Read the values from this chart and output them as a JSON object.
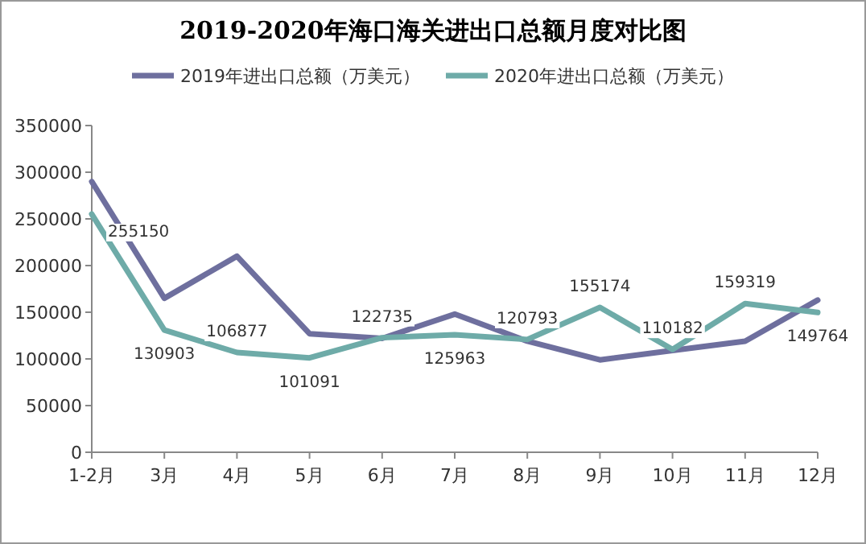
{
  "chart_data": {
    "type": "line",
    "title": "2019-2020年海口海关进出口总额月度对比图",
    "categories": [
      "1-2月",
      "3月",
      "4月",
      "5月",
      "6月",
      "7月",
      "8月",
      "9月",
      "10月",
      "11月",
      "12月"
    ],
    "series": [
      {
        "name": "2019年进出口总额（万美元）",
        "color": "#6e6f9e",
        "values": [
          290000,
          165000,
          210000,
          127000,
          122000,
          148000,
          119000,
          99000,
          109000,
          119000,
          163000
        ]
      },
      {
        "name": "2020年进出口总额（万美元）",
        "color": "#6eaba8",
        "values": [
          255150,
          130903,
          106877,
          101091,
          122735,
          125963,
          120793,
          155174,
          110182,
          159319,
          149764
        ],
        "value_labels": [
          "255150",
          "130903",
          "106877",
          "101091",
          "122735",
          "125963",
          "120793",
          "155174",
          "110182",
          "159319",
          "149764"
        ]
      }
    ],
    "ylim": [
      0,
      350000
    ],
    "yticks": [
      0,
      50000,
      100000,
      150000,
      200000,
      250000,
      300000,
      350000
    ],
    "grid": false,
    "legend": "top",
    "marker": "none",
    "line_style": "solid"
  }
}
